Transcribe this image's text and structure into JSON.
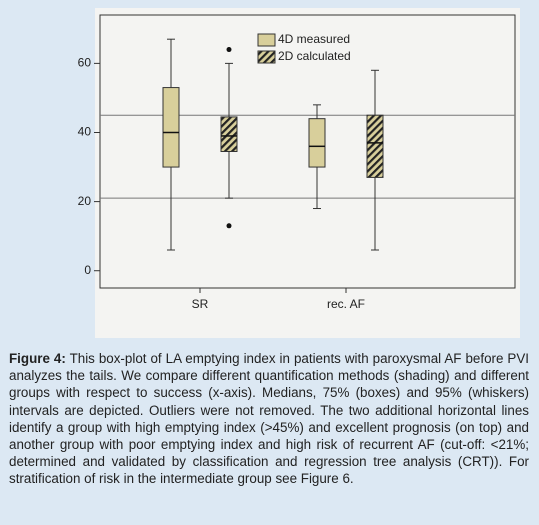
{
  "chart_data": {
    "type": "box",
    "categories": [
      "SR",
      "rec. AF"
    ],
    "series": [
      {
        "name": "4D measured",
        "color": "#d8cf9b",
        "hatch": false,
        "values": [
          {
            "whisker_low": 6,
            "q1": 30,
            "median": 40,
            "q3": 53,
            "whisker_high": 67,
            "outliers": []
          },
          {
            "whisker_low": 18,
            "q1": 30,
            "median": 36,
            "q3": 44,
            "whisker_high": 48,
            "outliers": []
          }
        ]
      },
      {
        "name": "2D calculated",
        "color": "#d8cf9b",
        "hatch": true,
        "values": [
          {
            "whisker_low": 21,
            "q1": 34.5,
            "median": 39,
            "q3": 44.5,
            "whisker_high": 60,
            "outliers": [
              64,
              13
            ]
          },
          {
            "whisker_low": 6,
            "q1": 27,
            "median": 37,
            "q3": 45,
            "whisker_high": 58,
            "outliers": []
          }
        ]
      }
    ],
    "reference_lines": [
      45,
      21
    ],
    "ylim": [
      -5,
      74
    ],
    "yticks": [
      0,
      20,
      40,
      60
    ],
    "legend": "top-right"
  },
  "caption": {
    "label": "Figure 4:",
    "text": "This box-plot of LA emptying index in patients with paroxysmal AF before PVI analyzes the tails. We compare different quantification methods (shading) and different groups with respect to success (x-axis). Medians, 75% (boxes) and 95% (whiskers) intervals are depicted. Outliers were not removed. The two additional horizontal lines identify a group with high emptying index (>45%) and excellent prognosis (on top) and another group with poor emptying index and high risk of recurrent AF (cut-off: <21%; determined and validated by classification and regression tree analysis (CRT)). For stratification of risk in the intermediate group see Figure 6."
  }
}
